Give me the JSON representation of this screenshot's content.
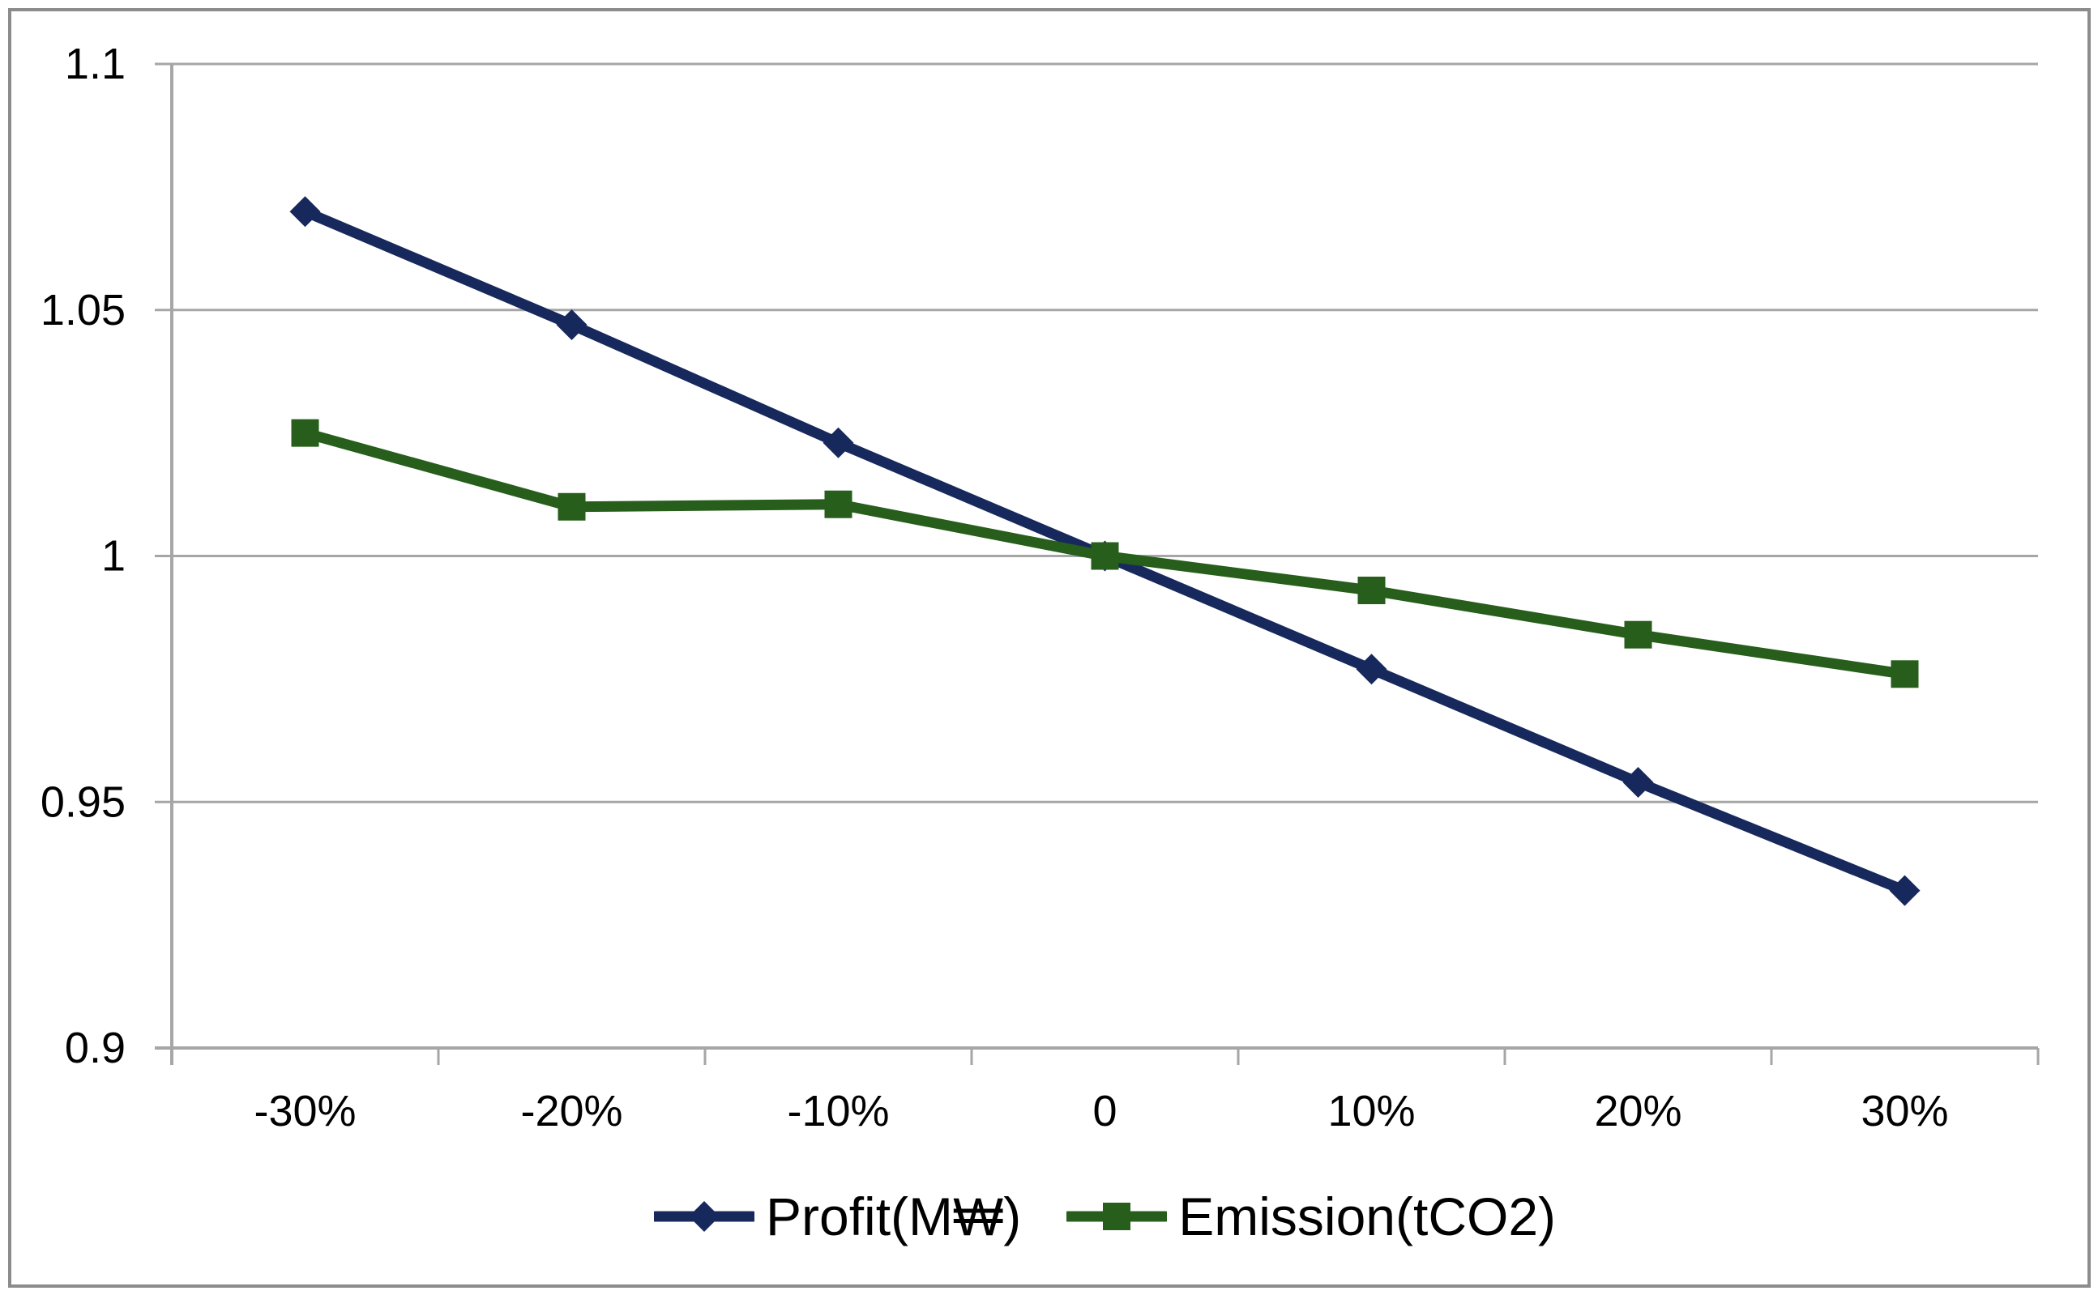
{
  "figure": {
    "background": "#FFFFFF",
    "border_color": "#8C8C8C"
  },
  "chart_data": {
    "type": "line",
    "title": "",
    "xlabel": "",
    "ylabel": "",
    "categories": [
      "-30%",
      "-20%",
      "-10%",
      "0",
      "10%",
      "20%",
      "30%"
    ],
    "series": [
      {
        "name": "Profit(M₩)",
        "marker": "diamond",
        "color": "#17295C",
        "values": [
          1.07,
          1.047,
          1.023,
          1.0,
          0.977,
          0.954,
          0.932
        ]
      },
      {
        "name": "Emission(tCO2)",
        "marker": "square",
        "color": "#275E1B",
        "values": [
          1.025,
          1.01,
          1.0105,
          1.0,
          0.993,
          0.984,
          0.976
        ]
      }
    ],
    "ylim": [
      0.9,
      1.1
    ],
    "y_ticks": [
      1.1,
      1.05,
      1.0,
      0.95,
      0.9
    ],
    "y_tick_labels": [
      "1.1",
      "1.05",
      "1",
      "0.95",
      "0.9"
    ],
    "grid": "horizontal-only",
    "legend_position": "bottom",
    "gridline_color": "#A6A6A6",
    "axis_color": "#A6A6A6",
    "text_color": "#000000"
  }
}
